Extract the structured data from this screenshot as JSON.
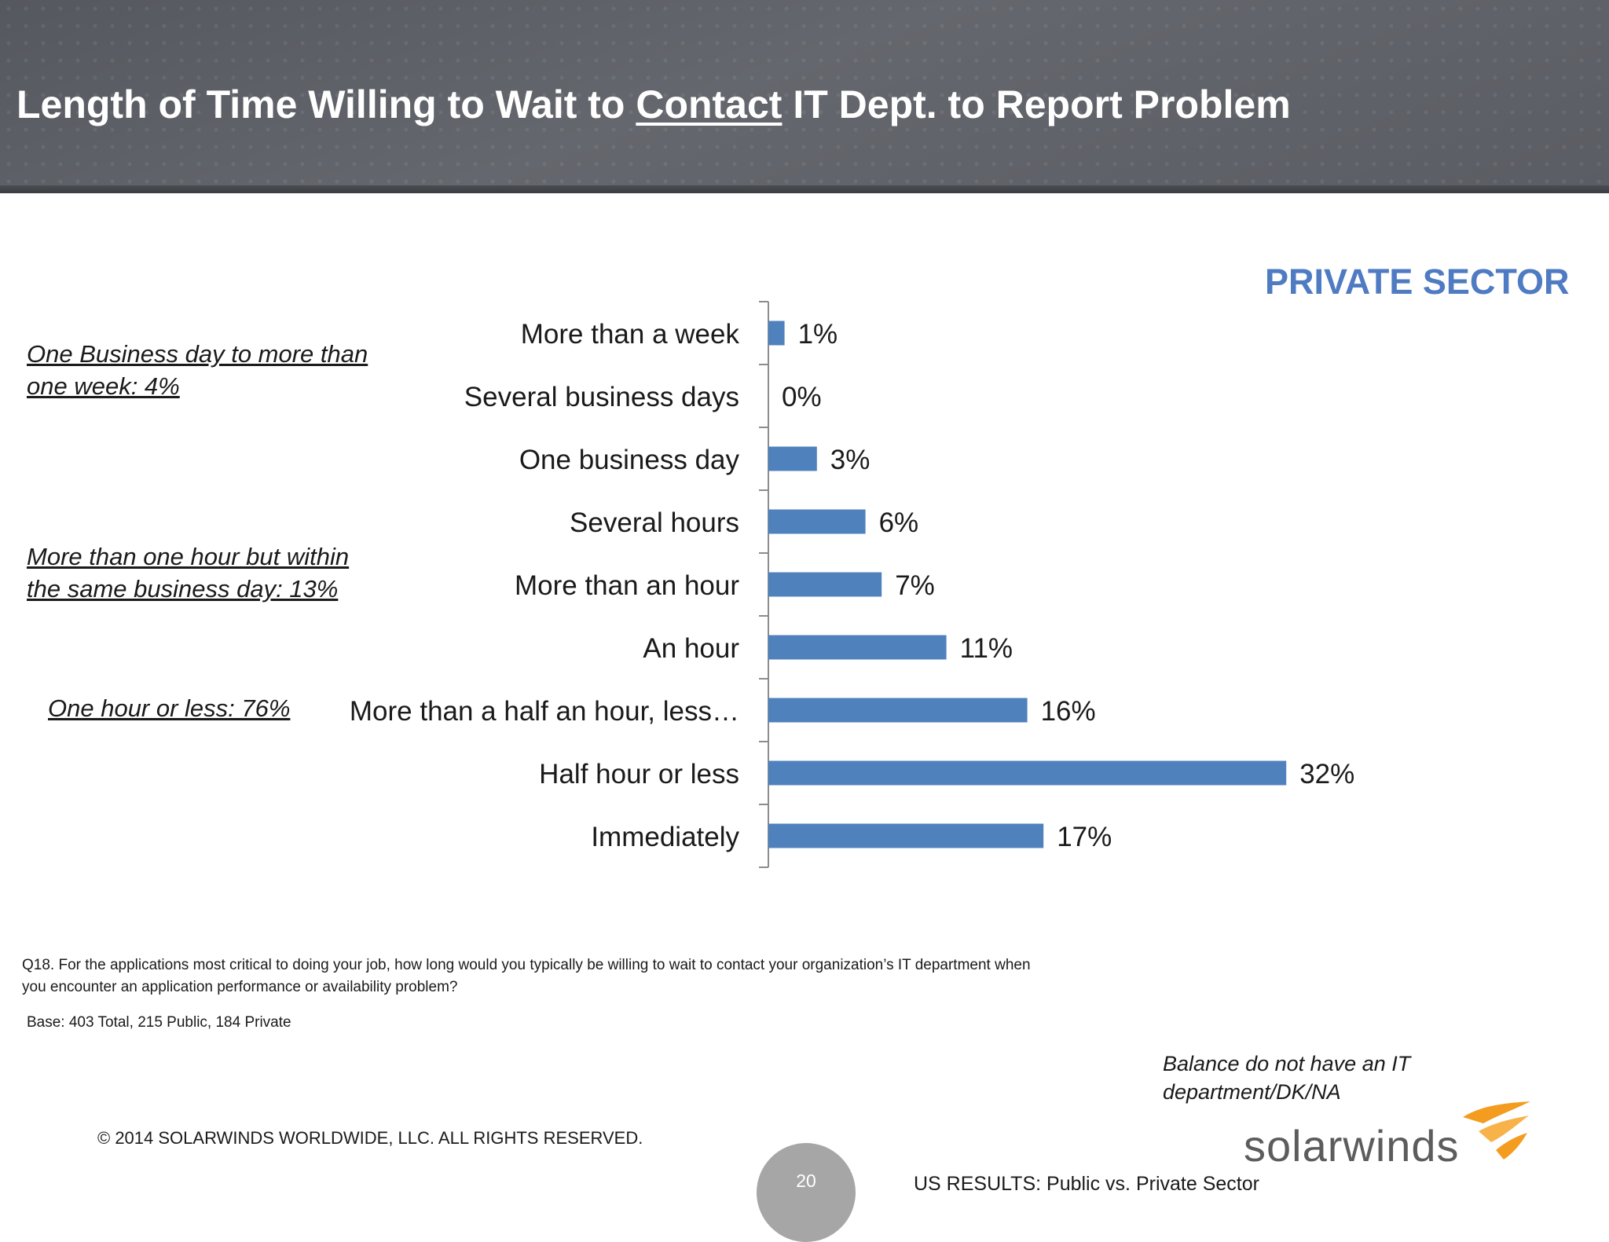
{
  "slide": {
    "title_before": "Length of Time Willing to Wait to ",
    "title_underlined": "Contact",
    "title_after": " IT Dept. to Report Problem",
    "sector_label": "PRIVATE SECTOR"
  },
  "notes": {
    "group1_line1": "One Business day to more than",
    "group1_line2": "one week:  4%",
    "group2_line1": "More than one hour but within",
    "group2_line2": "the same business day:  13%",
    "group3": "One hour or less:  76%"
  },
  "chart_data": {
    "type": "bar",
    "orientation": "horizontal",
    "categories": [
      "More than a week",
      "Several business days",
      "One business day",
      "Several hours",
      "More than an hour",
      "An hour",
      "More than a half an hour, less…",
      "Half hour or less",
      "Immediately"
    ],
    "values": [
      1,
      0,
      3,
      6,
      7,
      11,
      16,
      32,
      17
    ],
    "value_labels": [
      "1%",
      "0%",
      "3%",
      "6%",
      "7%",
      "11%",
      "16%",
      "32%",
      "17%"
    ],
    "bar_color": "#4f81bd",
    "grid": false
  },
  "footer": {
    "question": "Q18. For the applications most critical to doing your job, how long would you typically be willing to wait to contact your organization’s IT department when you encounter an application performance or availability problem?",
    "base": "Base:  403  Total, 215 Public, 184 Private",
    "balance": "Balance do not have an IT department/DK/NA",
    "copyright": "© 2014 SOLARWINDS WORLDWIDE, LLC.  ALL RIGHTS RESERVED.",
    "page_number": "20",
    "results_label": "US RESULTS:  Public vs. Private Sector",
    "logo_text": "solarwinds",
    "logo_icon": "solarwinds-flame-icon",
    "accent_color": "#f39c1f"
  }
}
